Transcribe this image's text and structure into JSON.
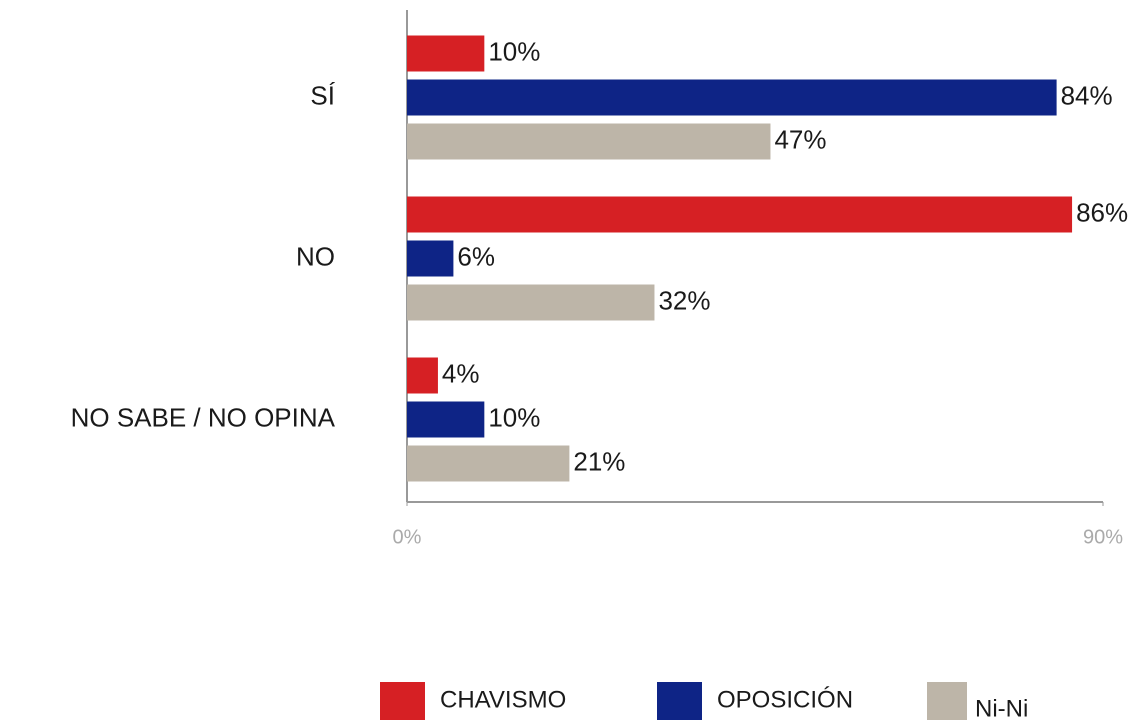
{
  "chart_data": {
    "type": "bar",
    "orientation": "horizontal",
    "categories": [
      "SÍ",
      "NO",
      "NO SABE / NO OPINA"
    ],
    "series": [
      {
        "name": "CHAVISMO",
        "color": "#d62024",
        "values": [
          10,
          86,
          4
        ],
        "value_labels": [
          "10%",
          "86%",
          "4%"
        ]
      },
      {
        "name": "OPOSICIÓN",
        "color": "#0e2486",
        "values": [
          84,
          6,
          10
        ],
        "value_labels": [
          "84%",
          "6%",
          "10%"
        ]
      },
      {
        "name": "Ni-Ni",
        "color": "#bdb5a8",
        "values": [
          47,
          32,
          21
        ],
        "value_labels": [
          "47%",
          "32%",
          "21%"
        ]
      }
    ],
    "xlim": [
      0,
      90
    ],
    "xticks": [
      {
        "value": 0,
        "label": "0%"
      },
      {
        "value": 90,
        "label": "90%"
      }
    ],
    "grid": false,
    "legend": "bottom"
  }
}
